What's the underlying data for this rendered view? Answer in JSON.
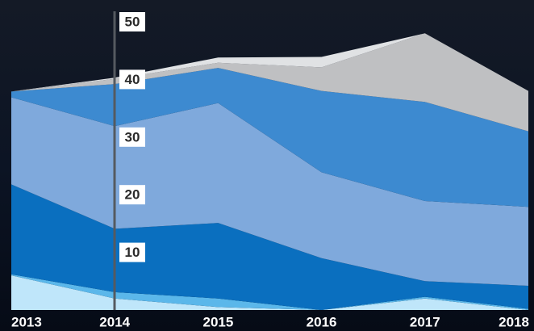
{
  "chart_data": {
    "type": "stacked_area",
    "categories": [
      "2013",
      "2014",
      "2015",
      "2016",
      "2017",
      "2018"
    ],
    "series": [
      {
        "color": "#bfe6fa",
        "values": [
          6.0,
          2.0,
          0.5,
          0,
          2.0,
          0
        ]
      },
      {
        "color": "#5bb7ea",
        "values": [
          0.2,
          1.1,
          1.5,
          0,
          0.3,
          0.2
        ]
      },
      {
        "color": "#0a6fbf",
        "values": [
          15.6,
          11.0,
          13.1,
          9.0,
          2.7,
          4.0
        ]
      },
      {
        "color": "#7fa9dc",
        "values": [
          15.1,
          17.8,
          20.8,
          14.9,
          13.9,
          13.7
        ]
      },
      {
        "color": "#3d8ad0",
        "values": [
          1.0,
          7.3,
          6.1,
          14.1,
          17.2,
          13.1
        ]
      },
      {
        "color": "#bfc0c2",
        "values": [
          0,
          0.9,
          0.9,
          4.1,
          11.9,
          7.0
        ]
      },
      {
        "color": "#e0e2e4",
        "values": [
          0,
          0.2,
          0.9,
          1.8,
          0,
          0
        ]
      }
    ],
    "ylim": [
      0,
      50
    ],
    "yticks": [
      10,
      20,
      30,
      40,
      50
    ]
  }
}
